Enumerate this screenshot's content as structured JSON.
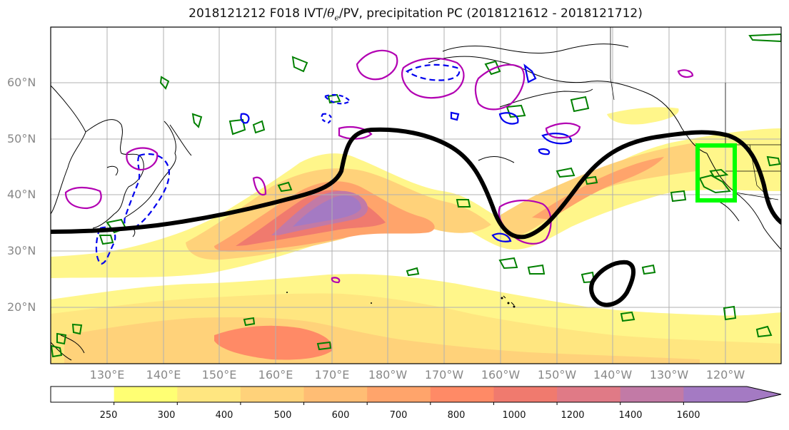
{
  "title": {
    "prefix": "2018121212 F018 IVT/",
    "theta": "θ",
    "theta_sub": "e",
    "suffix": "/PV, precipitation PC (2018121612 - 2018121712)"
  },
  "map": {
    "projection": "equirectangular",
    "lon_range_deg_east": [
      120,
      250
    ],
    "lat_range": [
      10,
      70
    ],
    "gridlines": true,
    "lat_labels": [
      "60°N",
      "50°N",
      "40°N",
      "30°N",
      "20°N"
    ],
    "lon_labels": [
      "130°E",
      "140°E",
      "150°E",
      "160°E",
      "170°E",
      "180°W",
      "170°W",
      "160°W",
      "150°W",
      "140°W",
      "130°W",
      "120°W"
    ],
    "layers": [
      {
        "name": "IVT filled contours",
        "type": "filled-contour"
      },
      {
        "name": "precipitation PC",
        "type": "line-contour",
        "color": "#000000"
      },
      {
        "name": "theta-e contours",
        "type": "line-contour",
        "color": "#0000ff"
      },
      {
        "name": "PV contours",
        "type": "line-contour",
        "color": "#bb00bb"
      },
      {
        "name": "small contours",
        "type": "line-contour",
        "color": "#008000"
      },
      {
        "name": "highlight box",
        "type": "rectangle",
        "color": "#00ff00"
      }
    ]
  },
  "colorbar": {
    "ticks": [
      "250",
      "300",
      "400",
      "500",
      "600",
      "700",
      "800",
      "1000",
      "1200",
      "1400",
      "1600"
    ],
    "colors": [
      "#ffffff",
      "#ffff73",
      "#ffe680",
      "#ffd27a",
      "#ffbd74",
      "#ffa46b",
      "#ff8a66",
      "#f07a6e",
      "#e07a86",
      "#c27aa6",
      "#a47ac3"
    ],
    "extend": "max"
  }
}
